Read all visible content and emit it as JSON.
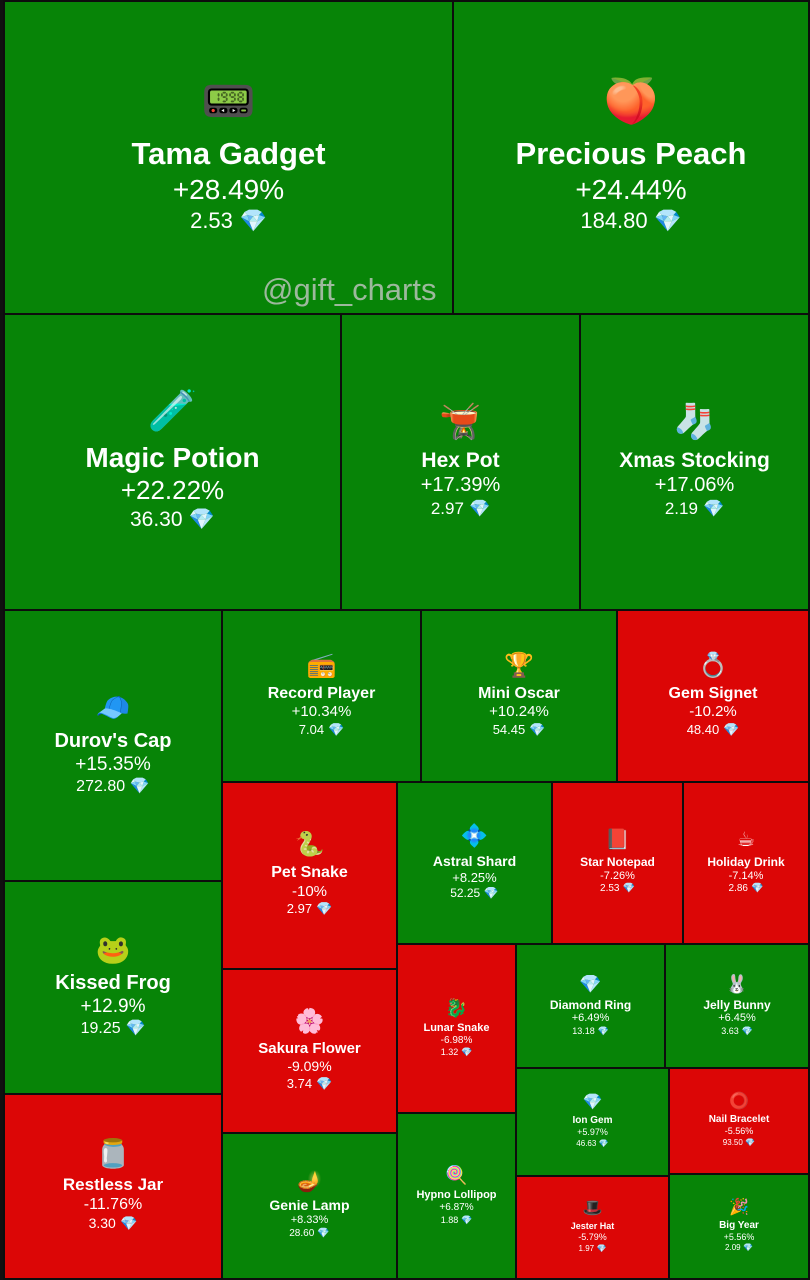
{
  "watermark": "@gift_charts",
  "colors": {
    "up": "#078407",
    "down": "#dc0606",
    "border": "#0d0d0d"
  },
  "chart_data": {
    "type": "treemap",
    "currency_icon": "💎",
    "items": [
      {
        "name": "Tama Gadget",
        "change": "+28.49%",
        "price": "2.53",
        "icon": "📟",
        "icon_name": "tamagotchi-icon"
      },
      {
        "name": "Precious Peach",
        "change": "+24.44%",
        "price": "184.80",
        "icon": "🍑",
        "icon_name": "plum-icon"
      },
      {
        "name": "Magic Potion",
        "change": "+22.22%",
        "price": "36.30",
        "icon": "🧪",
        "icon_name": "potion-bottle-icon"
      },
      {
        "name": "Hex Pot",
        "change": "+17.39%",
        "price": "2.97",
        "icon": "🫕",
        "icon_name": "cauldron-icon"
      },
      {
        "name": "Xmas Stocking",
        "change": "+17.06%",
        "price": "2.19",
        "icon": "🧦",
        "icon_name": "stocking-icon"
      },
      {
        "name": "Durov's Cap",
        "change": "+15.35%",
        "price": "272.80",
        "icon": "🧢",
        "icon_name": "cap-icon"
      },
      {
        "name": "Record Player",
        "change": "+10.34%",
        "price": "7.04",
        "icon": "📻",
        "icon_name": "record-player-icon"
      },
      {
        "name": "Mini Oscar",
        "change": "+10.24%",
        "price": "54.45",
        "icon": "🏆",
        "icon_name": "oscar-statuette-icon"
      },
      {
        "name": "Gem Signet",
        "change": "-10.2%",
        "price": "48.40",
        "icon": "💍",
        "icon_name": "signet-ring-icon"
      },
      {
        "name": "Pet Snake",
        "change": "-10%",
        "price": "2.97",
        "icon": "🐍",
        "icon_name": "snake-icon"
      },
      {
        "name": "Astral Shard",
        "change": "+8.25%",
        "price": "52.25",
        "icon": "💠",
        "icon_name": "crystal-shard-icon"
      },
      {
        "name": "Star Notepad",
        "change": "-7.26%",
        "price": "2.53",
        "icon": "📕",
        "icon_name": "notepad-icon"
      },
      {
        "name": "Holiday Drink",
        "change": "-7.14%",
        "price": "2.86",
        "icon": "☕",
        "icon_name": "holiday-drink-icon"
      },
      {
        "name": "Kissed Frog",
        "change": "+12.9%",
        "price": "19.25",
        "icon": "🐸",
        "icon_name": "frog-icon"
      },
      {
        "name": "Sakura Flower",
        "change": "-9.09%",
        "price": "3.74",
        "icon": "🌸",
        "icon_name": "sakura-flower-icon"
      },
      {
        "name": "Lunar Snake",
        "change": "-6.98%",
        "price": "1.32",
        "icon": "🐉",
        "icon_name": "lunar-snake-icon"
      },
      {
        "name": "Diamond Ring",
        "change": "+6.49%",
        "price": "13.18",
        "icon": "💎",
        "icon_name": "diamond-ring-icon"
      },
      {
        "name": "Jelly Bunny",
        "change": "+6.45%",
        "price": "3.63",
        "icon": "🐰",
        "icon_name": "jelly-bunny-icon"
      },
      {
        "name": "Ion Gem",
        "change": "+5.97%",
        "price": "46.63",
        "icon": "💎",
        "icon_name": "ion-gem-icon"
      },
      {
        "name": "Nail Bracelet",
        "change": "-5.56%",
        "price": "93.50",
        "icon": "⭕",
        "icon_name": "nail-bracelet-icon"
      },
      {
        "name": "Restless Jar",
        "change": "-11.76%",
        "price": "3.30",
        "icon": "🫙",
        "icon_name": "jar-icon"
      },
      {
        "name": "Genie Lamp",
        "change": "+8.33%",
        "price": "28.60",
        "icon": "🪔",
        "icon_name": "genie-lamp-icon"
      },
      {
        "name": "Hypno Lollipop",
        "change": "+6.87%",
        "price": "1.88",
        "icon": "🍭",
        "icon_name": "lollipop-icon"
      },
      {
        "name": "Jester Hat",
        "change": "-5.79%",
        "price": "1.97",
        "icon": "🎩",
        "icon_name": "jester-hat-icon"
      },
      {
        "name": "Big Year",
        "change": "+5.56%",
        "price": "2.09",
        "icon": "🎉",
        "icon_name": "big-year-icon"
      }
    ]
  }
}
